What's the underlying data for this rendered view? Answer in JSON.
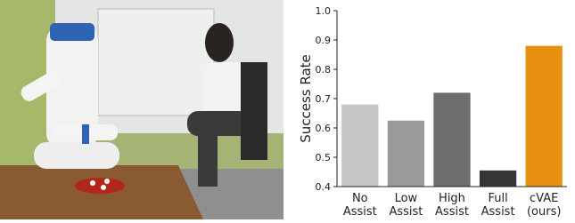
{
  "chart_data": {
    "type": "bar",
    "ylabel": "Success Rate",
    "categories": [
      "No Assist",
      "Low Assist",
      "High Assist",
      "Full Assist",
      "cVAE (ours)"
    ],
    "values": [
      0.68,
      0.625,
      0.72,
      0.455,
      0.88
    ],
    "colors": [
      "#c6c6c6",
      "#9a9a9a",
      "#6e6e6e",
      "#353535",
      "#e8900f"
    ],
    "ylim": [
      0.4,
      1.0
    ],
    "yticks": [
      0.4,
      0.5,
      0.6,
      0.7,
      0.8,
      0.9,
      {
        "value": 1.0,
        "label": "1.0"
      }
    ]
  }
}
